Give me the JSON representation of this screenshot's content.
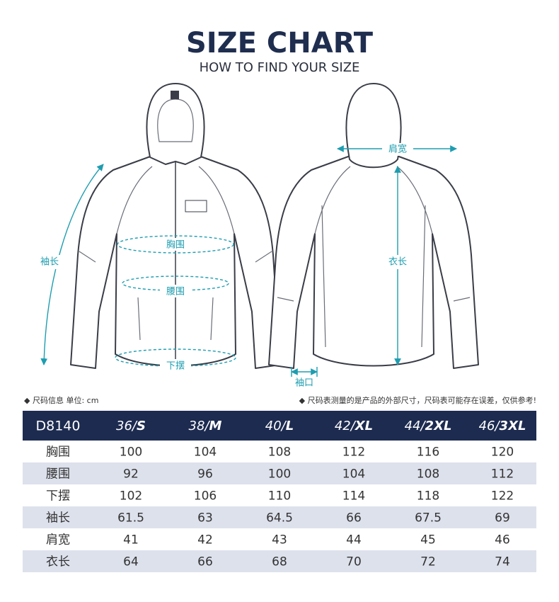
{
  "header": {
    "title": "SIZE CHART",
    "subtitle": "HOW TO FIND YOUR SIZE"
  },
  "diagram": {
    "labels": {
      "chest": "胸围",
      "waist": "腰围",
      "hem": "下摆",
      "sleeve": "袖长",
      "shoulder": "肩宽",
      "length": "衣长",
      "cuff": "袖口"
    }
  },
  "notes": {
    "left": "◆ 尺码信息  单位: cm",
    "right": "◆ 尺码表测量的是产品的外部尺寸，尺码表可能存在误差，仅供参考!"
  },
  "table": {
    "model": "D8140",
    "sizes": [
      {
        "num": "36/",
        "size": "S"
      },
      {
        "num": "38/",
        "size": "M"
      },
      {
        "num": "40/",
        "size": "L"
      },
      {
        "num": "42/",
        "size": "XL"
      },
      {
        "num": "44/",
        "size": "2XL"
      },
      {
        "num": "46/",
        "size": "3XL"
      }
    ],
    "rows": [
      {
        "label": "胸围",
        "values": [
          100,
          104,
          108,
          112,
          116,
          120
        ]
      },
      {
        "label": "腰围",
        "values": [
          92,
          96,
          100,
          104,
          108,
          112
        ]
      },
      {
        "label": "下摆",
        "values": [
          102,
          106,
          110,
          114,
          118,
          122
        ]
      },
      {
        "label": "袖长",
        "values": [
          61.5,
          63,
          64.5,
          66,
          67.5,
          69
        ]
      },
      {
        "label": "肩宽",
        "values": [
          41,
          42,
          43,
          44,
          45,
          46
        ]
      },
      {
        "label": "衣长",
        "values": [
          64,
          66,
          68,
          70,
          72,
          74
        ]
      }
    ]
  }
}
